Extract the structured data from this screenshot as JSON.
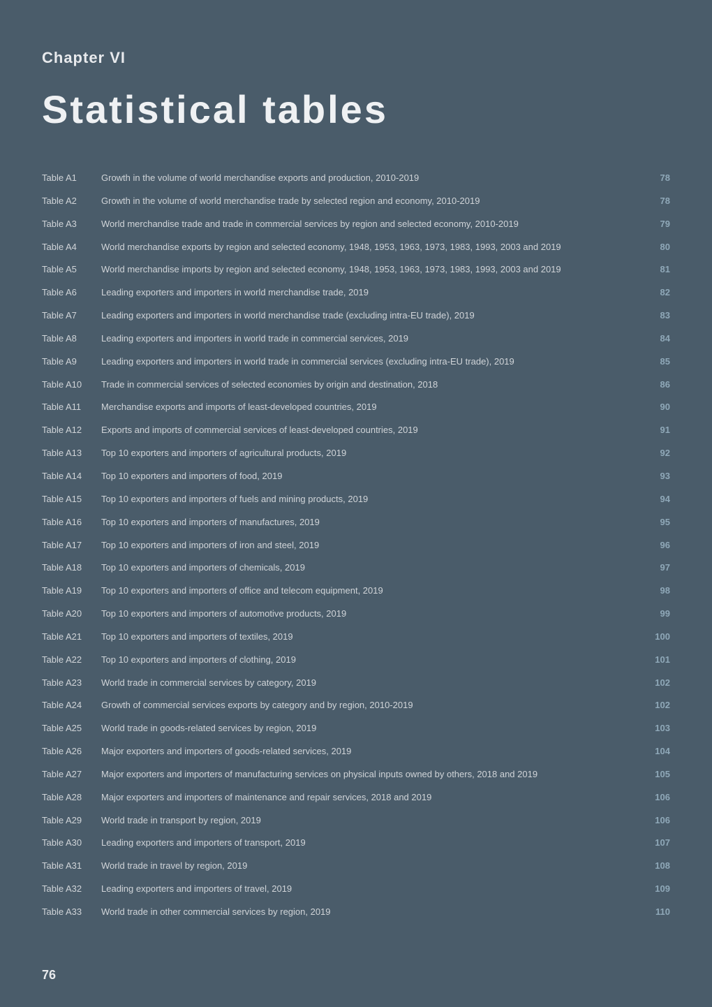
{
  "chapter": "Chapter VI",
  "title": "Statistical tables",
  "pageNumber": "76",
  "entries": [
    {
      "id": "Table A1",
      "desc": "Growth in the volume of world merchandise exports and production, 2010-2019",
      "page": "78"
    },
    {
      "id": "Table A2",
      "desc": "Growth in the volume of world merchandise trade by selected region and economy, 2010-2019",
      "page": "78"
    },
    {
      "id": "Table A3",
      "desc": "World merchandise trade and trade in commercial services by region and selected economy, 2010-2019",
      "page": "79"
    },
    {
      "id": "Table A4",
      "desc": "World merchandise exports by region and selected economy, 1948, 1953, 1963, 1973, 1983, 1993, 2003 and 2019",
      "page": "80"
    },
    {
      "id": "Table A5",
      "desc": "World merchandise imports by region and selected economy, 1948, 1953, 1963, 1973, 1983, 1993, 2003 and 2019",
      "page": "81"
    },
    {
      "id": "Table A6",
      "desc": "Leading exporters and importers in world merchandise trade, 2019",
      "page": "82"
    },
    {
      "id": "Table A7",
      "desc": "Leading exporters and importers in world merchandise trade (excluding intra-EU trade), 2019",
      "page": "83"
    },
    {
      "id": "Table A8",
      "desc": "Leading exporters and importers in world trade in commercial services, 2019",
      "page": "84"
    },
    {
      "id": "Table A9",
      "desc": "Leading exporters and importers in world trade in commercial services (excluding intra-EU trade), 2019",
      "page": "85"
    },
    {
      "id": "Table A10",
      "desc": "Trade in commercial services of selected economies by origin and destination, 2018",
      "page": "86"
    },
    {
      "id": "Table A11",
      "desc": "Merchandise exports and imports of least-developed countries, 2019",
      "page": "90"
    },
    {
      "id": "Table A12",
      "desc": "Exports and imports of commercial services of least-developed countries, 2019",
      "page": "91"
    },
    {
      "id": "Table A13",
      "desc": "Top 10 exporters and importers of agricultural products, 2019",
      "page": "92"
    },
    {
      "id": "Table A14",
      "desc": "Top 10 exporters and importers of food, 2019",
      "page": "93"
    },
    {
      "id": "Table A15",
      "desc": "Top 10 exporters and importers of fuels and mining products, 2019",
      "page": "94"
    },
    {
      "id": "Table A16",
      "desc": "Top 10 exporters and importers of manufactures, 2019",
      "page": "95"
    },
    {
      "id": "Table A17",
      "desc": "Top 10 exporters and importers of iron and steel, 2019",
      "page": "96"
    },
    {
      "id": "Table A18",
      "desc": "Top 10 exporters and importers of chemicals, 2019",
      "page": "97"
    },
    {
      "id": "Table A19",
      "desc": "Top 10 exporters and importers of office and telecom equipment, 2019",
      "page": "98"
    },
    {
      "id": "Table A20",
      "desc": "Top 10 exporters and importers of automotive products, 2019",
      "page": "99"
    },
    {
      "id": "Table A21",
      "desc": "Top 10 exporters and importers of textiles, 2019",
      "page": "100"
    },
    {
      "id": "Table A22",
      "desc": "Top 10 exporters and importers of clothing, 2019",
      "page": "101"
    },
    {
      "id": "Table A23",
      "desc": "World trade in commercial services by category, 2019",
      "page": "102"
    },
    {
      "id": "Table A24",
      "desc": "Growth of commercial services exports by category and by region, 2010-2019",
      "page": "102"
    },
    {
      "id": "Table A25",
      "desc": "World trade in goods-related services by region, 2019",
      "page": "103"
    },
    {
      "id": "Table A26",
      "desc": "Major exporters and importers of goods-related services, 2019",
      "page": "104"
    },
    {
      "id": "Table A27",
      "desc": "Major exporters and importers of manufacturing services on physical inputs owned by others, 2018 and 2019",
      "page": "105"
    },
    {
      "id": "Table A28",
      "desc": "Major exporters and importers of maintenance and repair services, 2018 and 2019",
      "page": "106"
    },
    {
      "id": "Table A29",
      "desc": "World trade in transport by region, 2019",
      "page": "106"
    },
    {
      "id": "Table A30",
      "desc": "Leading exporters and importers of transport, 2019",
      "page": "107"
    },
    {
      "id": "Table A31",
      "desc": "World trade in travel by region, 2019",
      "page": "108"
    },
    {
      "id": "Table A32",
      "desc": "Leading exporters and importers of travel, 2019",
      "page": "109"
    },
    {
      "id": "Table A33",
      "desc": "World trade in other commercial services by region, 2019",
      "page": "110"
    }
  ]
}
